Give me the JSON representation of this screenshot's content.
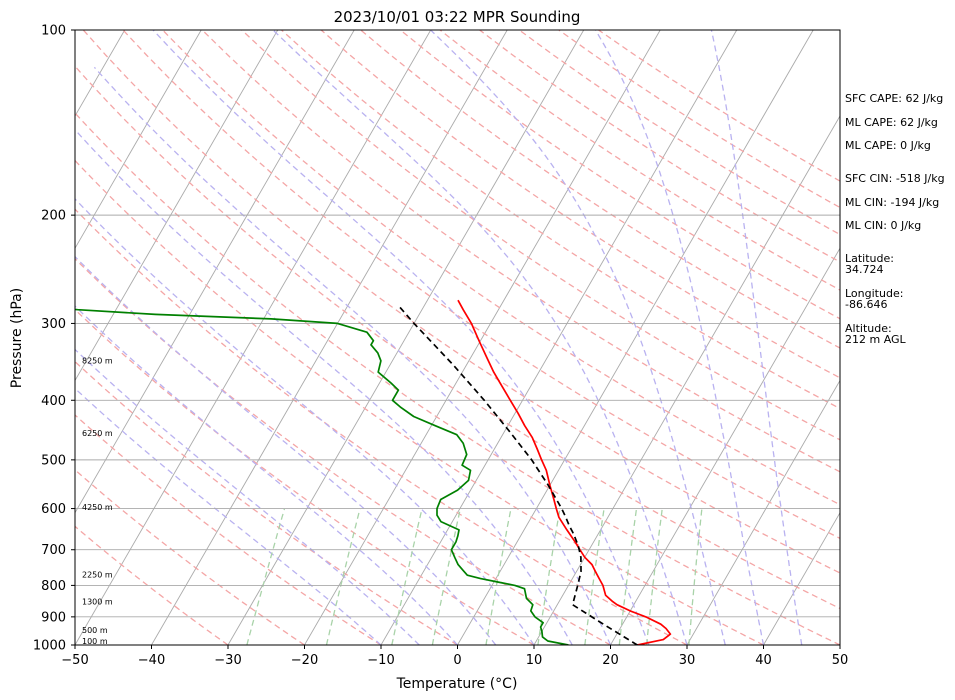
{
  "chart_data": {
    "type": "line",
    "subtype": "skew-t log-p sounding",
    "title": "2023/10/01 03:22 MPR Sounding",
    "xlabel": "Temperature (°C)",
    "ylabel": "Pressure (hPa)",
    "xlim": [
      -50,
      50
    ],
    "ylim": [
      1000,
      100
    ],
    "y_scale": "log",
    "x_ticks": [
      -50,
      -40,
      -30,
      -20,
      -10,
      0,
      10,
      20,
      30,
      40,
      50
    ],
    "x_tick_labels": [
      "−50",
      "−40",
      "−30",
      "−20",
      "−10",
      "0",
      "10",
      "20",
      "30",
      "40",
      "50"
    ],
    "y_ticks": [
      100,
      200,
      300,
      400,
      500,
      600,
      700,
      800,
      900,
      1000
    ],
    "y_tick_labels": [
      "100",
      "200",
      "300",
      "400",
      "500",
      "600",
      "700",
      "800",
      "900",
      "1000"
    ],
    "grid": true,
    "background_lines": [
      "isotherms",
      "dry adiabats",
      "moist adiabats",
      "mixing ratio lines"
    ],
    "colors": {
      "temperature": "#ff0000",
      "dewpoint": "#008000",
      "parcel": "#000000",
      "isotherm": "#aaaaaa",
      "dry_adiabat": "#f4a6a6",
      "moist_adiabat": "#b9b2f0",
      "mixing_ratio": "#a9d3a9",
      "hgrid": "#aaaaaa"
    },
    "series": [
      {
        "key": "temperature",
        "style": "solid",
        "p": [
          1000,
          980,
          960,
          940,
          925,
          900,
          880,
          860,
          850,
          830,
          800,
          780,
          760,
          740,
          720,
          700,
          680,
          650,
          620,
          600,
          580,
          550,
          520,
          500,
          480,
          460,
          440,
          420,
          400,
          380,
          360,
          340,
          320,
          300,
          285,
          275
        ],
        "t": [
          23.5,
          26.5,
          27.0,
          26.0,
          25.0,
          22.5,
          20.0,
          17.8,
          17.0,
          15.6,
          14.5,
          13.5,
          12.5,
          11.5,
          10.0,
          8.8,
          7.6,
          5.6,
          3.6,
          2.6,
          1.6,
          0.0,
          -1.6,
          -3.0,
          -4.4,
          -5.9,
          -7.8,
          -9.6,
          -11.6,
          -13.7,
          -15.9,
          -18.0,
          -20.2,
          -22.5,
          -24.6,
          -26.0
        ]
      },
      {
        "key": "dewpoint",
        "style": "solid",
        "p": [
          1000,
          985,
          970,
          950,
          935,
          920,
          900,
          880,
          860,
          840,
          825,
          810,
          800,
          790,
          780,
          770,
          755,
          740,
          720,
          700,
          680,
          665,
          650,
          630,
          615,
          600,
          580,
          560,
          540,
          520,
          510,
          490,
          470,
          455,
          440,
          425,
          410,
          400,
          385,
          375,
          360,
          345,
          335,
          325,
          320,
          310,
          300,
          295,
          290,
          285,
          280
        ],
        "t": [
          14.5,
          11.5,
          10.5,
          10.0,
          9.5,
          9.5,
          8.0,
          7.0,
          6.8,
          5.5,
          5.0,
          4.5,
          3.0,
          0.5,
          -2.0,
          -4.0,
          -5.0,
          -6.0,
          -7.0,
          -8.0,
          -8.0,
          -8.2,
          -8.5,
          -11.5,
          -12.5,
          -13.0,
          -13.2,
          -11.7,
          -11.0,
          -11.5,
          -13.0,
          -13.2,
          -14.5,
          -16.0,
          -19.5,
          -23.0,
          -25.5,
          -27.0,
          -27.0,
          -28.5,
          -31.0,
          -31.5,
          -32.5,
          -34.0,
          -34.0,
          -35.5,
          -40.0,
          -49.0,
          -64.5,
          -75.0,
          -82.0
        ]
      },
      {
        "key": "parcel",
        "style": "dashed",
        "p": [
          1000,
          925,
          860,
          800,
          760,
          720,
          690,
          670,
          655,
          640,
          620,
          600,
          550,
          500,
          450,
          400,
          350,
          300,
          280
        ],
        "t": [
          23.5,
          17.5,
          12.0,
          11.2,
          10.6,
          9.5,
          8.3,
          7.3,
          6.5,
          5.6,
          4.5,
          3.3,
          -0.2,
          -4.3,
          -9.3,
          -15.0,
          -21.8,
          -30.0,
          -33.5
        ]
      }
    ],
    "height_labels": [
      {
        "p": 1000,
        "text": "100 m"
      },
      {
        "p": 960,
        "text": "500 m"
      },
      {
        "p": 862,
        "text": "1300 m"
      },
      {
        "p": 780,
        "text": "2250 m"
      },
      {
        "p": 605,
        "text": "4250 m"
      },
      {
        "p": 459,
        "text": "6250 m"
      },
      {
        "p": 350,
        "text": "8250 m"
      }
    ]
  },
  "annotations": [
    "SFC CAPE: 62 J/kg",
    "ML CAPE: 62 J/kg",
    "ML CAPE: 0 J/kg",
    "SFC CIN: -518 J/kg",
    "ML CIN: -194 J/kg",
    "ML CIN: 0 J/kg",
    "Latitude:",
    "34.724",
    "Longitude:",
    "-86.646",
    "Altitude:",
    "212 m AGL"
  ]
}
